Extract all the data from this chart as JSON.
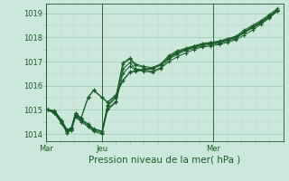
{
  "bg_color": "#cce8dc",
  "grid_color_major": "#a0c8b4",
  "grid_color_minor": "#b8d8c8",
  "line_color": "#1a5c2a",
  "xlabel": "Pression niveau de la mer( hPa )",
  "xlabel_fontsize": 7.5,
  "ylim": [
    1013.7,
    1019.4
  ],
  "yticks": [
    1014,
    1015,
    1016,
    1017,
    1018,
    1019
  ],
  "ytick_fontsize": 6,
  "xtick_labels": [
    "Mar",
    "Jeu",
    "Mer"
  ],
  "xtick_positions": [
    0.0,
    2.0,
    6.0
  ],
  "xtick_fontsize": 6,
  "xlim": [
    0,
    8.5
  ],
  "series": [
    [
      0.05,
      1015.0,
      0.3,
      1014.85,
      0.55,
      1014.45,
      0.75,
      1014.05,
      0.9,
      1014.15,
      1.05,
      1014.7,
      1.25,
      1014.5,
      1.5,
      1014.3,
      1.7,
      1014.1,
      2.0,
      1014.0,
      2.2,
      1015.0,
      2.5,
      1015.3,
      2.75,
      1016.5,
      3.0,
      1016.8,
      3.2,
      1016.65,
      3.5,
      1016.6,
      3.8,
      1016.55,
      4.1,
      1016.7,
      4.4,
      1017.0,
      4.7,
      1017.2,
      5.0,
      1017.35,
      5.3,
      1017.5,
      5.6,
      1017.6,
      5.9,
      1017.65,
      6.2,
      1017.7,
      6.5,
      1017.8,
      6.8,
      1017.9,
      7.1,
      1018.1,
      7.4,
      1018.3,
      7.7,
      1018.55,
      8.0,
      1018.8,
      8.3,
      1019.1
    ],
    [
      0.05,
      1015.0,
      0.3,
      1014.85,
      0.55,
      1014.45,
      0.75,
      1014.05,
      0.9,
      1014.15,
      1.05,
      1014.75,
      1.25,
      1014.55,
      1.5,
      1014.35,
      1.7,
      1014.15,
      2.0,
      1014.05,
      2.2,
      1015.05,
      2.5,
      1015.35,
      2.75,
      1016.7,
      3.0,
      1016.95,
      3.2,
      1016.7,
      3.5,
      1016.65,
      3.8,
      1016.6,
      4.1,
      1016.75,
      4.4,
      1017.1,
      4.7,
      1017.3,
      5.0,
      1017.45,
      5.3,
      1017.55,
      5.6,
      1017.65,
      5.9,
      1017.7,
      6.2,
      1017.75,
      6.5,
      1017.85,
      6.8,
      1017.95,
      7.1,
      1018.2,
      7.4,
      1018.4,
      7.7,
      1018.6,
      8.0,
      1018.85,
      8.3,
      1019.1
    ],
    [
      0.05,
      1015.0,
      0.3,
      1014.9,
      0.55,
      1014.5,
      0.75,
      1014.1,
      0.9,
      1014.2,
      1.05,
      1014.8,
      1.25,
      1014.6,
      1.5,
      1014.4,
      1.7,
      1014.2,
      2.0,
      1014.1,
      2.2,
      1015.15,
      2.5,
      1015.5,
      2.75,
      1016.9,
      3.0,
      1017.1,
      3.2,
      1016.85,
      3.5,
      1016.75,
      3.8,
      1016.7,
      4.1,
      1016.85,
      4.4,
      1017.2,
      4.7,
      1017.4,
      5.0,
      1017.5,
      5.3,
      1017.6,
      5.6,
      1017.7,
      5.9,
      1017.75,
      6.2,
      1017.8,
      6.5,
      1017.9,
      6.8,
      1018.0,
      7.1,
      1018.25,
      7.4,
      1018.45,
      7.7,
      1018.65,
      8.0,
      1018.9,
      8.3,
      1019.15
    ],
    [
      0.05,
      1015.0,
      0.3,
      1014.92,
      0.55,
      1014.52,
      0.75,
      1014.12,
      0.9,
      1014.22,
      1.05,
      1014.82,
      1.25,
      1014.62,
      1.5,
      1014.42,
      1.7,
      1014.22,
      2.0,
      1014.12,
      2.2,
      1015.2,
      2.5,
      1015.55,
      2.75,
      1016.95,
      3.0,
      1017.15,
      3.2,
      1016.9,
      3.5,
      1016.8,
      3.8,
      1016.75,
      4.1,
      1016.9,
      4.4,
      1017.25,
      4.7,
      1017.45,
      5.0,
      1017.55,
      5.3,
      1017.65,
      5.6,
      1017.75,
      5.9,
      1017.8,
      6.2,
      1017.85,
      6.5,
      1017.95,
      6.8,
      1018.05,
      7.1,
      1018.3,
      7.4,
      1018.5,
      7.7,
      1018.7,
      8.0,
      1018.95,
      8.3,
      1019.2
    ],
    [
      0.05,
      1015.0,
      0.3,
      1014.95,
      0.55,
      1014.55,
      0.75,
      1014.15,
      0.9,
      1014.25,
      1.05,
      1014.85,
      1.25,
      1014.65,
      1.5,
      1015.5,
      1.7,
      1015.8,
      2.0,
      1015.5,
      2.2,
      1015.3,
      2.5,
      1015.6,
      2.75,
      1016.2,
      3.0,
      1016.55,
      3.2,
      1016.6,
      3.5,
      1016.65,
      3.8,
      1016.7,
      4.1,
      1016.85,
      4.4,
      1017.15,
      4.7,
      1017.35,
      5.0,
      1017.5,
      5.3,
      1017.6,
      5.6,
      1017.7,
      5.9,
      1017.75,
      6.2,
      1017.8,
      6.5,
      1017.9,
      6.8,
      1018.0,
      7.1,
      1018.2,
      7.4,
      1018.4,
      7.7,
      1018.6,
      8.0,
      1018.85,
      8.3,
      1019.1
    ],
    [
      0.05,
      1015.0,
      0.3,
      1014.97,
      0.55,
      1014.57,
      0.75,
      1014.17,
      0.9,
      1014.27,
      1.05,
      1014.87,
      1.25,
      1014.67,
      1.5,
      1015.52,
      1.7,
      1015.82,
      2.0,
      1015.52,
      2.2,
      1015.32,
      2.5,
      1015.62,
      2.75,
      1016.22,
      3.0,
      1016.57,
      3.2,
      1016.62,
      3.5,
      1016.67,
      3.8,
      1016.72,
      4.1,
      1016.87,
      4.4,
      1017.17,
      4.7,
      1017.37,
      5.0,
      1017.52,
      5.3,
      1017.62,
      5.6,
      1017.72,
      5.9,
      1017.77,
      6.2,
      1017.82,
      6.5,
      1017.92,
      6.8,
      1018.02,
      7.1,
      1018.22,
      7.4,
      1018.42,
      7.7,
      1018.62,
      8.0,
      1018.87,
      8.3,
      1019.12
    ]
  ]
}
